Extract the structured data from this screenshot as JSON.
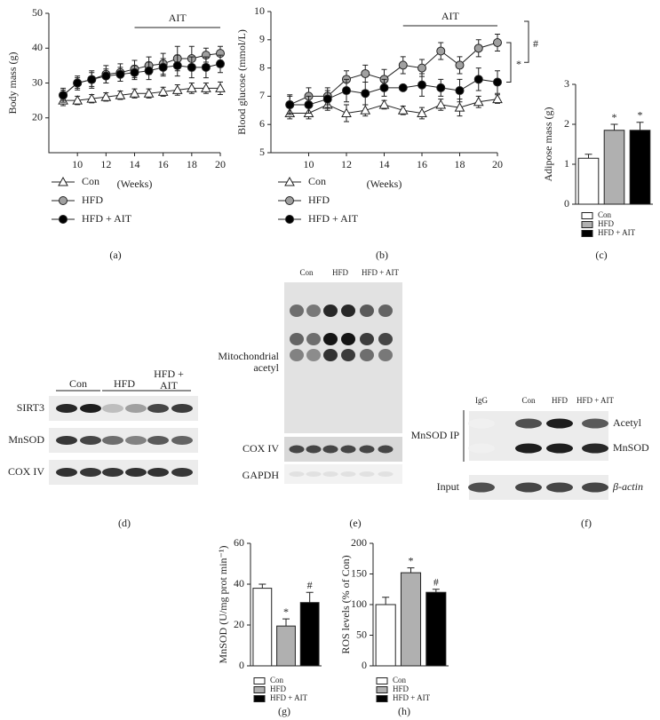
{
  "chart_data": [
    {
      "type": "line",
      "panel": "(a)",
      "ylabel": "Body mass (g)",
      "xlabel": "(Weeks)",
      "x": [
        9,
        10,
        11,
        12,
        13,
        14,
        15,
        16,
        17,
        18,
        19,
        20
      ],
      "xlim": [
        8,
        20
      ],
      "xticks": [
        10,
        12,
        14,
        16,
        18,
        20
      ],
      "ylim": [
        10,
        50
      ],
      "yticks": [
        20,
        30,
        40,
        50
      ],
      "annotation": {
        "text": "AIT",
        "x": [
          14,
          20
        ]
      },
      "series": [
        {
          "name": "Con",
          "color": "#ffffff",
          "marker": "triangle",
          "values": [
            25,
            25,
            25.5,
            26,
            26.5,
            27,
            27,
            27.5,
            28,
            28.5,
            28.5,
            28.5
          ],
          "errors": [
            1.5,
            1.2,
            1.2,
            1.2,
            1.2,
            1.3,
            1.3,
            1.3,
            1.5,
            1.5,
            1.5,
            1.8
          ]
        },
        {
          "name": "HFD",
          "color": "#a0a0a0",
          "marker": "circle",
          "values": [
            26.5,
            30,
            31,
            32.5,
            33,
            34,
            35,
            35.5,
            37,
            37,
            38,
            38.5
          ],
          "errors": [
            2,
            2,
            2.5,
            2.5,
            2.5,
            2.5,
            2.5,
            3,
            3.5,
            3.5,
            2,
            2
          ]
        },
        {
          "name": "HFD + AIT",
          "color": "#000000",
          "marker": "circle",
          "values": [
            26.5,
            30,
            31,
            32,
            32.5,
            33,
            33.5,
            34.5,
            35,
            34.5,
            34.5,
            35.5
          ],
          "errors": [
            1.5,
            1.5,
            2,
            2,
            2,
            2,
            2.5,
            2.5,
            3,
            3,
            3,
            2.5
          ]
        }
      ]
    },
    {
      "type": "line",
      "panel": "(b)",
      "ylabel": "Blood glucose (mmol/L)",
      "xlabel": "(Weeks)",
      "x": [
        9,
        10,
        11,
        12,
        13,
        14,
        15,
        16,
        17,
        18,
        19,
        20
      ],
      "xlim": [
        8,
        20
      ],
      "xticks": [
        10,
        12,
        14,
        16,
        18,
        20
      ],
      "ylim": [
        5,
        10
      ],
      "yticks": [
        5,
        6,
        7,
        8,
        9,
        10
      ],
      "annotation": {
        "text": "AIT",
        "x": [
          15,
          20
        ]
      },
      "brackets": [
        "*",
        "#"
      ],
      "series": [
        {
          "name": "Con",
          "color": "#ffffff",
          "marker": "triangle",
          "values": [
            6.4,
            6.4,
            6.7,
            6.4,
            6.5,
            6.7,
            6.5,
            6.4,
            6.7,
            6.6,
            6.8,
            6.9
          ],
          "errors": [
            0.2,
            0.2,
            0.2,
            0.3,
            0.2,
            0.15,
            0.15,
            0.2,
            0.2,
            0.3,
            0.2,
            0.15
          ]
        },
        {
          "name": "HFD",
          "color": "#a0a0a0",
          "marker": "circle",
          "values": [
            6.7,
            7.0,
            7.0,
            7.6,
            7.8,
            7.6,
            8.1,
            8.0,
            8.6,
            8.1,
            8.7,
            8.9
          ],
          "errors": [
            0.35,
            0.3,
            0.3,
            0.3,
            0.3,
            0.35,
            0.3,
            0.3,
            0.3,
            0.3,
            0.3,
            0.3
          ]
        },
        {
          "name": "HFD + AIT",
          "color": "#000000",
          "marker": "circle",
          "values": [
            6.7,
            6.7,
            6.9,
            7.2,
            7.1,
            7.3,
            7.3,
            7.4,
            7.3,
            7.2,
            7.6,
            7.5
          ],
          "errors": [
            0.3,
            0.3,
            0.3,
            0.4,
            0.4,
            0.3,
            0.1,
            0.4,
            0.3,
            0.4,
            0.4,
            0.4
          ]
        }
      ]
    },
    {
      "type": "bar",
      "panel": "(c)",
      "ylabel": "Adipose mass (g)",
      "categories": [
        "Con",
        "HFD",
        "HFD + AIT"
      ],
      "colors": [
        "#ffffff",
        "#b0b0b0",
        "#000000"
      ],
      "values": [
        1.15,
        1.85,
        1.85
      ],
      "errors": [
        0.1,
        0.15,
        0.2
      ],
      "annotations": [
        null,
        "*",
        "*"
      ],
      "ylim": [
        0,
        3
      ],
      "yticks": [
        0,
        1,
        2,
        3
      ]
    },
    {
      "type": "bar",
      "panel": "(g)",
      "ylabel": "MnSOD (U/mg prot min⁻¹)",
      "categories": [
        "Con",
        "HFD",
        "HFD + AIT"
      ],
      "colors": [
        "#ffffff",
        "#b0b0b0",
        "#000000"
      ],
      "values": [
        38,
        19.5,
        31
      ],
      "errors": [
        2,
        3.5,
        5
      ],
      "annotations": [
        null,
        "*",
        "#"
      ],
      "ylim": [
        0,
        60
      ],
      "yticks": [
        0,
        20,
        40,
        60
      ]
    },
    {
      "type": "bar",
      "panel": "(h)",
      "ylabel": "ROS levels (% of Con)",
      "categories": [
        "Con",
        "HFD",
        "HFD + AIT"
      ],
      "colors": [
        "#ffffff",
        "#b0b0b0",
        "#000000"
      ],
      "values": [
        100,
        152,
        120
      ],
      "errors": [
        12,
        8,
        5
      ],
      "annotations": [
        null,
        "*",
        "#"
      ],
      "ylim": [
        0,
        200
      ],
      "yticks": [
        0,
        50,
        100,
        150,
        200
      ]
    }
  ],
  "blots": {
    "d": {
      "panel": "(d)",
      "groups": [
        "Con",
        "HFD",
        "HFD +\nAIT"
      ],
      "rows": [
        "SIRT3",
        "MnSOD",
        "COX IV"
      ]
    },
    "e": {
      "panel": "(e)",
      "groups": [
        "Con",
        "HFD",
        "HFD + AIT"
      ],
      "rows": [
        "Mitochondrial\nacetyl",
        "COX IV",
        "GAPDH"
      ]
    },
    "f": {
      "panel": "(f)",
      "groups": [
        "IgG",
        "Con",
        "HFD",
        "HFD + AIT"
      ],
      "left": [
        "MnSOD IP",
        "Input"
      ],
      "rows": [
        "Acetyl",
        "MnSOD",
        "β-actin"
      ]
    }
  }
}
